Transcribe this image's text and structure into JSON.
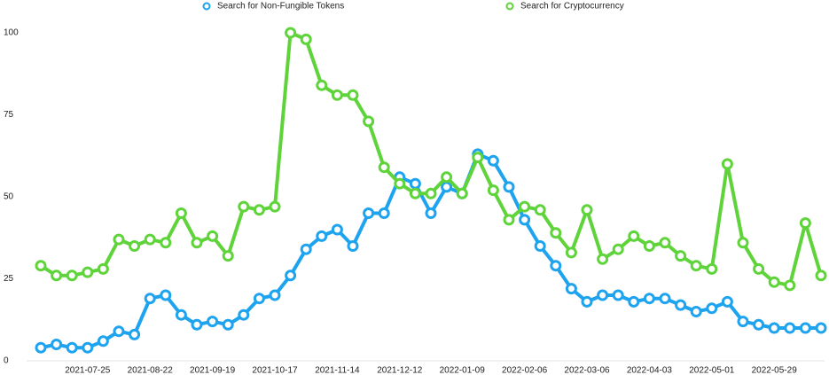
{
  "chart_data": {
    "type": "line",
    "categories": [
      null,
      null,
      null,
      "2021-07-25",
      null,
      null,
      null,
      "2021-08-22",
      null,
      null,
      null,
      "2021-09-19",
      null,
      null,
      null,
      "2021-10-17",
      null,
      null,
      null,
      "2021-11-14",
      null,
      null,
      null,
      "2021-12-12",
      null,
      null,
      null,
      "2022-01-09",
      null,
      null,
      null,
      "2022-02-06",
      null,
      null,
      null,
      "2022-03-06",
      null,
      null,
      null,
      "2022-04-03",
      null,
      null,
      null,
      "2022-05-01",
      null,
      null,
      null,
      "2022-05-29",
      null,
      null,
      null
    ],
    "series": [
      {
        "name": "Search for Non-Fungible Tokens",
        "color": "#1ea3ef",
        "values": [
          4,
          5,
          4,
          4,
          6,
          9,
          8,
          19,
          20,
          14,
          11,
          12,
          11,
          14,
          19,
          20,
          26,
          34,
          38,
          40,
          35,
          45,
          45,
          56,
          54,
          45,
          53,
          51,
          63,
          61,
          53,
          43,
          35,
          29,
          22,
          18,
          20,
          20,
          18,
          19,
          19,
          17,
          15,
          16,
          18,
          12,
          11,
          10,
          10,
          10,
          10
        ]
      },
      {
        "name": "Search for Cryptocurrency",
        "color": "#5fd43a",
        "values": [
          29,
          26,
          26,
          27,
          28,
          37,
          35,
          37,
          36,
          45,
          36,
          38,
          32,
          47,
          46,
          47,
          100,
          98,
          84,
          81,
          81,
          73,
          59,
          54,
          51,
          51,
          56,
          51,
          62,
          52,
          43,
          47,
          46,
          39,
          33,
          46,
          31,
          34,
          38,
          35,
          36,
          32,
          29,
          28,
          60,
          36,
          28,
          24,
          23,
          42,
          26
        ]
      }
    ],
    "ylim": [
      0,
      100
    ],
    "yticks": [
      0,
      25,
      50,
      75,
      100
    ]
  }
}
